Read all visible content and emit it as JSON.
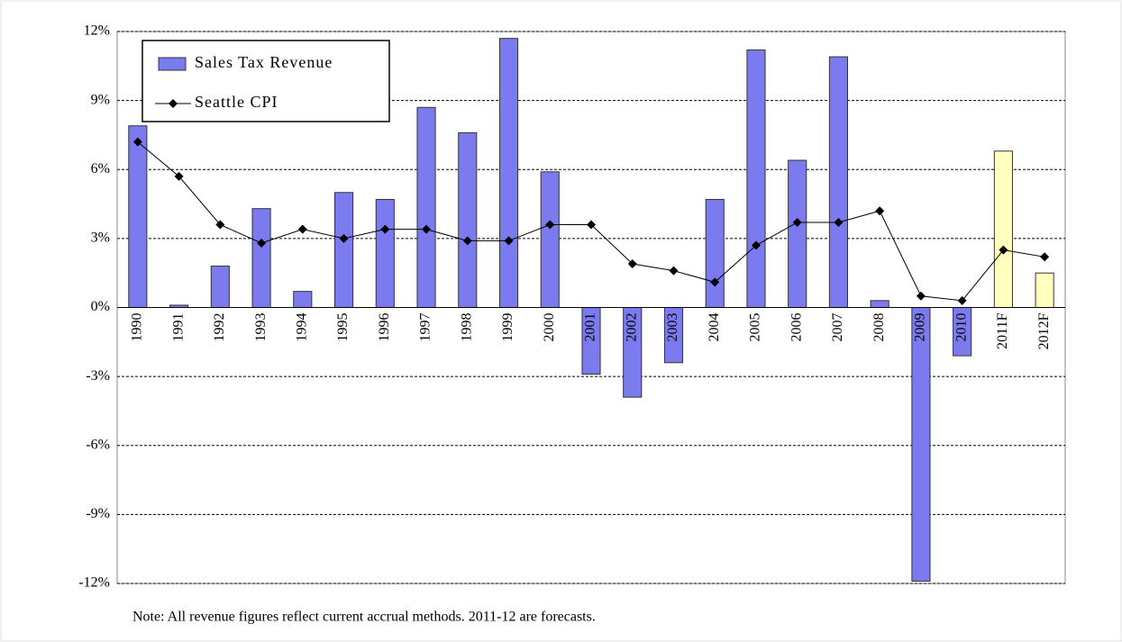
{
  "chart_data": {
    "type": "bar_line",
    "categories": [
      "1990",
      "1991",
      "1992",
      "1993",
      "1994",
      "1995",
      "1996",
      "1997",
      "1998",
      "1999",
      "2000",
      "2001",
      "2002",
      "2003",
      "2004",
      "2005",
      "2006",
      "2007",
      "2008",
      "2009",
      "2010",
      "2011F",
      "2012F"
    ],
    "series": [
      {
        "name": "Sales Tax Revenue",
        "type": "bar",
        "color": "#7b7bef",
        "colors": [
          "#7b7bef",
          "#7b7bef",
          "#7b7bef",
          "#7b7bef",
          "#7b7bef",
          "#7b7bef",
          "#7b7bef",
          "#7b7bef",
          "#7b7bef",
          "#7b7bef",
          "#7b7bef",
          "#7b7bef",
          "#7b7bef",
          "#7b7bef",
          "#7b7bef",
          "#7b7bef",
          "#7b7bef",
          "#7b7bef",
          "#7b7bef",
          "#7b7bef",
          "#7b7bef",
          "#ffffc0",
          "#ffffc0"
        ],
        "values": [
          7.9,
          0.1,
          1.8,
          4.3,
          0.7,
          5.0,
          4.7,
          8.7,
          7.6,
          11.7,
          5.9,
          -2.9,
          -3.9,
          -2.4,
          4.7,
          11.2,
          6.4,
          10.9,
          0.3,
          -11.9,
          -2.1,
          6.8,
          1.5
        ]
      },
      {
        "name": "Seattle CPI",
        "type": "line",
        "color": "#000000",
        "values": [
          7.2,
          5.7,
          3.6,
          2.8,
          3.4,
          3.0,
          3.4,
          3.4,
          2.9,
          2.9,
          3.6,
          3.6,
          1.9,
          1.6,
          1.1,
          2.7,
          3.7,
          3.7,
          4.2,
          0.5,
          0.3,
          2.5,
          2.2
        ]
      }
    ],
    "ylim": [
      -12,
      12
    ],
    "yticks": [
      {
        "value": -12,
        "label": "-12%"
      },
      {
        "value": -9,
        "label": "-9%"
      },
      {
        "value": -6,
        "label": "-6%"
      },
      {
        "value": -3,
        "label": "-3%"
      },
      {
        "value": 0,
        "label": "0%"
      },
      {
        "value": 3,
        "label": "3%"
      },
      {
        "value": 6,
        "label": "6%"
      },
      {
        "value": 9,
        "label": "9%"
      },
      {
        "value": 12,
        "label": "12%"
      }
    ],
    "grid": true,
    "legend": "upper left",
    "annotations": [
      "Note:  All revenue figures reflect current accrual methods.  2011-12 are forecasts."
    ]
  }
}
